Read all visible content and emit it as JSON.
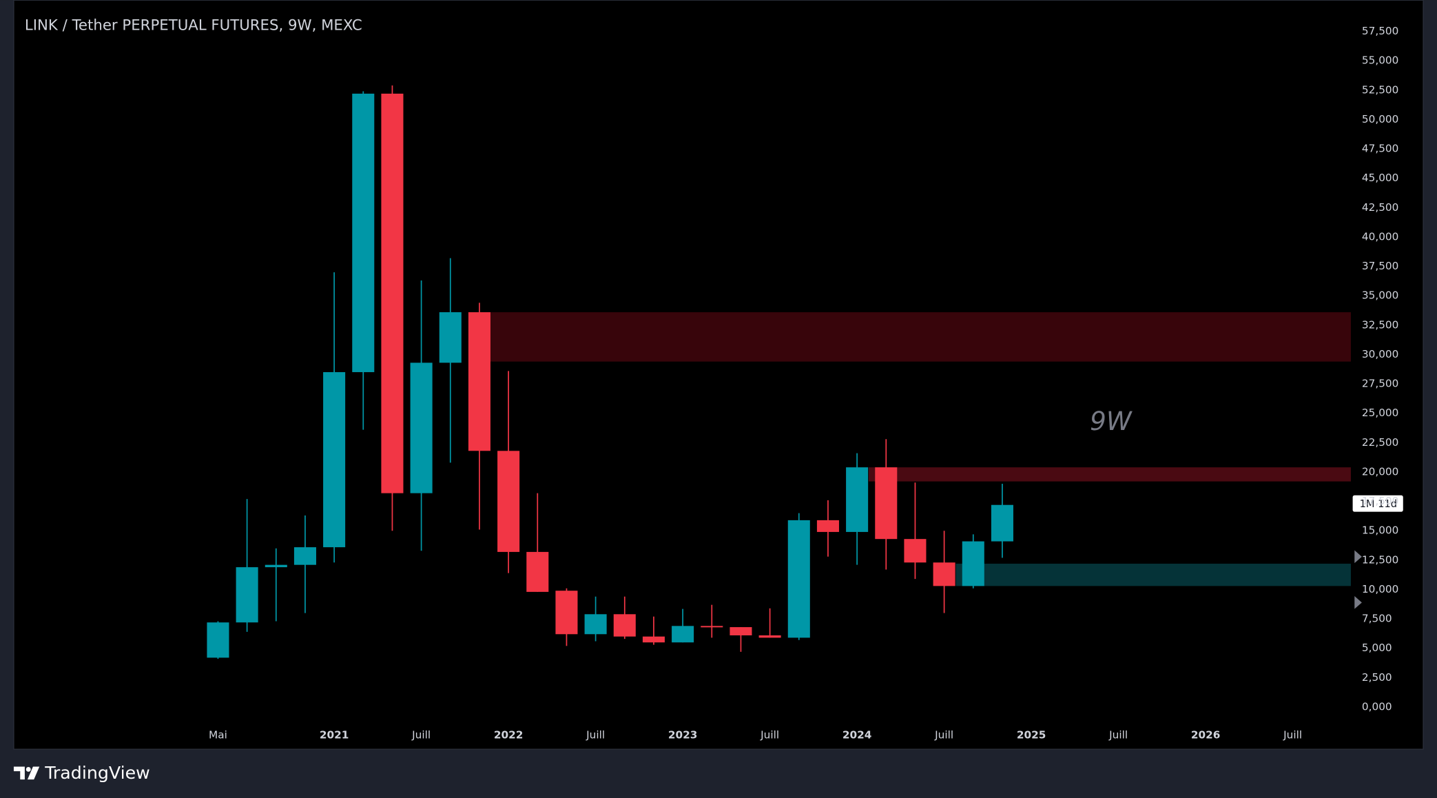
{
  "chart_data": {
    "type": "candlestick",
    "title": "LINK / Tether PERPETUAL FUTURES, 9W, MEXC",
    "annotation": "9W",
    "countdown": "1M 11d",
    "brand": "TradingView",
    "up_color": "#0097a7",
    "down_color": "#f23645",
    "candles": [
      {
        "open": 4200,
        "high": 7300,
        "low": 4100,
        "close": 7200
      },
      {
        "open": 7200,
        "high": 17700,
        "low": 6400,
        "close": 11900
      },
      {
        "open": 11900,
        "high": 13500,
        "low": 7300,
        "close": 12100
      },
      {
        "open": 12100,
        "high": 16300,
        "low": 8000,
        "close": 13600
      },
      {
        "open": 13600,
        "high": 37000,
        "low": 12300,
        "close": 28500
      },
      {
        "open": 28500,
        "high": 52400,
        "low": 23600,
        "close": 52200
      },
      {
        "open": 52200,
        "high": 52900,
        "low": 15000,
        "close": 18200
      },
      {
        "open": 18200,
        "high": 36300,
        "low": 13300,
        "close": 29300
      },
      {
        "open": 29300,
        "high": 38200,
        "low": 20800,
        "close": 33600
      },
      {
        "open": 33600,
        "high": 34400,
        "low": 15100,
        "close": 21800
      },
      {
        "open": 21800,
        "high": 28600,
        "low": 11400,
        "close": 13200
      },
      {
        "open": 13200,
        "high": 18200,
        "low": 9800,
        "close": 9800
      },
      {
        "open": 9900,
        "high": 10100,
        "low": 5200,
        "close": 6200
      },
      {
        "open": 6200,
        "high": 9400,
        "low": 5600,
        "close": 7900
      },
      {
        "open": 7900,
        "high": 9400,
        "low": 5800,
        "close": 6000
      },
      {
        "open": 6000,
        "high": 7700,
        "low": 5300,
        "close": 5500
      },
      {
        "open": 5500,
        "high": 8350,
        "low": 5500,
        "close": 6900
      },
      {
        "open": 6900,
        "high": 8700,
        "low": 5900,
        "close": 6800
      },
      {
        "open": 6800,
        "high": 6800,
        "low": 4700,
        "close": 6100
      },
      {
        "open": 6100,
        "high": 8400,
        "low": 5900,
        "close": 5900
      },
      {
        "open": 5900,
        "high": 16500,
        "low": 5700,
        "close": 15900
      },
      {
        "open": 15900,
        "high": 17600,
        "low": 12800,
        "close": 14900
      },
      {
        "open": 14900,
        "high": 21600,
        "low": 12100,
        "close": 20400
      },
      {
        "open": 20400,
        "high": 22800,
        "low": 11700,
        "close": 14300
      },
      {
        "open": 14300,
        "high": 19100,
        "low": 10900,
        "close": 12300
      },
      {
        "open": 12300,
        "high": 15000,
        "low": 8000,
        "close": 10300
      },
      {
        "open": 10300,
        "high": 14700,
        "low": 10100,
        "close": 14100
      },
      {
        "open": 14100,
        "high": 19000,
        "low": 12700,
        "close": 17200
      }
    ],
    "zones": [
      {
        "from": 9,
        "top": 33600,
        "bottom": 29400,
        "color": "#38050b"
      },
      {
        "from": 22.4,
        "top": 20400,
        "bottom": 19200,
        "color": "#4a0a12"
      },
      {
        "from": 25.4,
        "top": 12200,
        "bottom": 10300,
        "color": "#053338"
      }
    ],
    "xlim": [
      -7,
      39
    ],
    "xticks": [
      {
        "value": 0,
        "label": "Mai"
      },
      {
        "value": 4,
        "label": "2021"
      },
      {
        "value": 7,
        "label": "Juill"
      },
      {
        "value": 10,
        "label": "2022"
      },
      {
        "value": 13,
        "label": "Juill"
      },
      {
        "value": 16,
        "label": "2023"
      },
      {
        "value": 19,
        "label": "Juill"
      },
      {
        "value": 22,
        "label": "2024"
      },
      {
        "value": 25,
        "label": "Juill"
      },
      {
        "value": 28,
        "label": "2025"
      },
      {
        "value": 31,
        "label": "Juill"
      },
      {
        "value": 34,
        "label": "2026"
      },
      {
        "value": 37,
        "label": "Juill"
      }
    ],
    "ylim": [
      0,
      57500
    ],
    "yticks": [
      {
        "value": 0,
        "label": "0,000"
      },
      {
        "value": 2500,
        "label": "2,500"
      },
      {
        "value": 5000,
        "label": "5,000"
      },
      {
        "value": 7500,
        "label": "7,500"
      },
      {
        "value": 10000,
        "label": "10,000"
      },
      {
        "value": 12500,
        "label": "12,500"
      },
      {
        "value": 15000,
        "label": "15,000"
      },
      {
        "value": 17500,
        "label": "17,500"
      },
      {
        "value": 20000,
        "label": "20,000"
      },
      {
        "value": 22500,
        "label": "22,500"
      },
      {
        "value": 25000,
        "label": "25,000"
      },
      {
        "value": 27500,
        "label": "27,500"
      },
      {
        "value": 30000,
        "label": "30,000"
      },
      {
        "value": 32500,
        "label": "32,500"
      },
      {
        "value": 35000,
        "label": "35,000"
      },
      {
        "value": 37500,
        "label": "37,500"
      },
      {
        "value": 40000,
        "label": "40,000"
      },
      {
        "value": 42500,
        "label": "42,500"
      },
      {
        "value": 45000,
        "label": "45,000"
      },
      {
        "value": 47500,
        "label": "47,500"
      },
      {
        "value": 50000,
        "label": "50,000"
      },
      {
        "value": 52500,
        "label": "52,500"
      },
      {
        "value": 55000,
        "label": "55,000"
      },
      {
        "value": 57500,
        "label": "57,500"
      }
    ]
  }
}
